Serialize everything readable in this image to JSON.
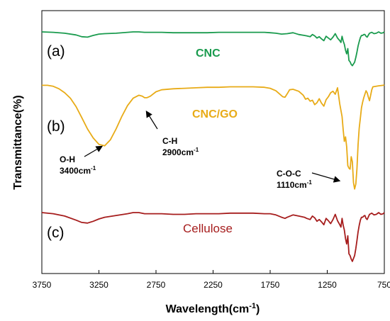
{
  "chart_data": {
    "type": "line",
    "xlabel": "Wavelength(cm",
    "xlabel_sup": "-1",
    "xlabel_close": ")",
    "ylabel": "Transmittance(%)",
    "xlim": [
      3750,
      750
    ],
    "x_reversed": true,
    "xticks": [
      "3750",
      "3250",
      "2750",
      "2250",
      "1750",
      "1250",
      "750"
    ],
    "grid": false,
    "series": [
      {
        "name": "CNC",
        "panel": "(a)",
        "color": "#1a9b4e",
        "x": [
          3750,
          3650,
          3550,
          3450,
          3400,
          3350,
          3300,
          3250,
          3200,
          3100,
          3000,
          2950,
          2900,
          2850,
          2800,
          2700,
          2600,
          2500,
          2400,
          2300,
          2200,
          2100,
          2000,
          1900,
          1800,
          1750,
          1700,
          1650,
          1600,
          1550,
          1500,
          1450,
          1430,
          1400,
          1380,
          1360,
          1340,
          1320,
          1300,
          1280,
          1260,
          1240,
          1220,
          1200,
          1180,
          1160,
          1140,
          1130,
          1120,
          1110,
          1100,
          1090,
          1080,
          1070,
          1060,
          1050,
          1040,
          1030,
          1020,
          1010,
          1000,
          990,
          980,
          970,
          960,
          950,
          940,
          930,
          920,
          910,
          900,
          880,
          860,
          840,
          820,
          800,
          780,
          760,
          750
        ],
        "y": [
          100,
          99.9,
          99.7,
          99.3,
          98.9,
          98.8,
          99.2,
          99.5,
          99.6,
          99.7,
          99.9,
          100,
          100,
          99.9,
          99.9,
          99.9,
          99.8,
          99.8,
          99.8,
          99.8,
          99.9,
          99.9,
          99.9,
          99.9,
          99.9,
          99.8,
          99.7,
          99.5,
          99.6,
          99.8,
          99.4,
          99.2,
          99.1,
          98.9,
          99.4,
          99.1,
          98.6,
          98.9,
          98.4,
          98.0,
          99.0,
          98.6,
          98.2,
          98.8,
          99.6,
          98.6,
          98.0,
          97.6,
          99.0,
          97.9,
          97.2,
          95.8,
          95.0,
          96.2,
          93.5,
          93.2,
          92.6,
          92.3,
          92.7,
          93.1,
          94.2,
          95.4,
          96.8,
          97.8,
          98.7,
          99.2,
          99.2,
          99.4,
          99.4,
          99.0,
          98.8,
          99.7,
          99.9,
          99.6,
          99.7,
          100,
          99.7,
          99.8,
          100
        ]
      },
      {
        "name": "CNC/GO",
        "panel": "(b)",
        "color": "#e8ab17",
        "x": [
          3750,
          3700,
          3650,
          3600,
          3550,
          3500,
          3450,
          3400,
          3350,
          3300,
          3250,
          3200,
          3150,
          3100,
          3050,
          3000,
          2950,
          2900,
          2870,
          2850,
          2830,
          2800,
          2750,
          2700,
          2600,
          2500,
          2400,
          2300,
          2200,
          2100,
          2000,
          1900,
          1800,
          1750,
          1700,
          1660,
          1640,
          1620,
          1600,
          1580,
          1550,
          1500,
          1460,
          1440,
          1420,
          1400,
          1380,
          1360,
          1340,
          1320,
          1300,
          1280,
          1260,
          1240,
          1220,
          1200,
          1180,
          1160,
          1140,
          1120,
          1110,
          1100,
          1090,
          1080,
          1070,
          1060,
          1050,
          1040,
          1030,
          1020,
          1010,
          1000,
          990,
          980,
          970,
          960,
          950,
          940,
          930,
          920,
          910,
          900,
          890,
          880,
          870,
          860,
          850,
          800,
          760,
          750
        ],
        "y": [
          99.8,
          99.8,
          99.6,
          99.1,
          98.3,
          97.2,
          95.5,
          93.3,
          91.0,
          89.2,
          87.9,
          87.6,
          88.8,
          91.0,
          93.5,
          95.7,
          97.2,
          97.8,
          97.6,
          97.3,
          97.3,
          97.6,
          98.5,
          98.9,
          99.1,
          99.2,
          99.3,
          99.4,
          99.4,
          99.5,
          99.5,
          99.5,
          99.4,
          99.2,
          98.7,
          97.9,
          97.5,
          97.4,
          98.1,
          98.9,
          99.0,
          98.6,
          97.8,
          97.0,
          97.2,
          96.6,
          96.8,
          95.9,
          96.3,
          97.1,
          96.2,
          95.6,
          96.9,
          97.5,
          98.3,
          98.6,
          98.0,
          99.3,
          96.0,
          93.5,
          90.8,
          88.5,
          89.4,
          87.4,
          83.6,
          83.1,
          82.9,
          85.4,
          84.4,
          80.2,
          78.9,
          79.9,
          83.0,
          87.9,
          91.2,
          93.2,
          95.3,
          96.4,
          97.3,
          98.0,
          98.7,
          98.3,
          97.4,
          96.7,
          97.8,
          98.9,
          99.5,
          99.7,
          99.8,
          99.9
        ]
      },
      {
        "name": "Cellulose",
        "panel": "(c)",
        "color": "#a61d1d",
        "x": [
          3750,
          3650,
          3550,
          3450,
          3400,
          3350,
          3300,
          3250,
          3200,
          3100,
          3000,
          2950,
          2900,
          2850,
          2800,
          2700,
          2600,
          2500,
          2400,
          2300,
          2200,
          2100,
          2000,
          1900,
          1800,
          1750,
          1700,
          1650,
          1620,
          1600,
          1550,
          1500,
          1450,
          1430,
          1400,
          1380,
          1360,
          1340,
          1320,
          1300,
          1280,
          1260,
          1240,
          1220,
          1200,
          1180,
          1160,
          1140,
          1130,
          1120,
          1110,
          1100,
          1090,
          1080,
          1070,
          1060,
          1050,
          1040,
          1030,
          1020,
          1010,
          1000,
          990,
          980,
          970,
          960,
          950,
          940,
          930,
          920,
          910,
          900,
          880,
          860,
          840,
          820,
          800,
          780,
          760,
          750
        ],
        "y": [
          100,
          99.8,
          99.4,
          98.7,
          98.3,
          98.2,
          98.5,
          98.9,
          99.2,
          99.5,
          99.8,
          100,
          100,
          99.8,
          99.8,
          99.8,
          99.7,
          99.7,
          99.8,
          99.8,
          99.8,
          99.9,
          99.9,
          99.9,
          99.8,
          99.8,
          99.6,
          99.2,
          99.0,
          99.2,
          99.6,
          99.4,
          99.2,
          99.0,
          98.8,
          99.4,
          99.1,
          98.5,
          98.8,
          98.4,
          97.9,
          99.0,
          98.6,
          98.1,
          98.8,
          99.7,
          98.6,
          97.9,
          97.5,
          99.0,
          97.8,
          97.0,
          95.5,
          94.6,
          96.0,
          92.9,
          92.6,
          92.0,
          91.6,
          92.1,
          92.6,
          93.8,
          95.2,
          96.7,
          97.8,
          98.7,
          99.2,
          99.2,
          99.4,
          99.5,
          99.0,
          98.8,
          99.7,
          99.9,
          99.6,
          99.7,
          100,
          99.7,
          99.8,
          100
        ]
      }
    ],
    "annotations": [
      {
        "label": "O-H",
        "value": "3400cm",
        "sup": "-1",
        "x": 3240
      },
      {
        "label": "C-H",
        "value": "2900cm",
        "sup": "-1",
        "x": 2850
      },
      {
        "label": "C-O-C",
        "value": "1110cm",
        "sup": "-1",
        "x": 1050
      }
    ]
  }
}
